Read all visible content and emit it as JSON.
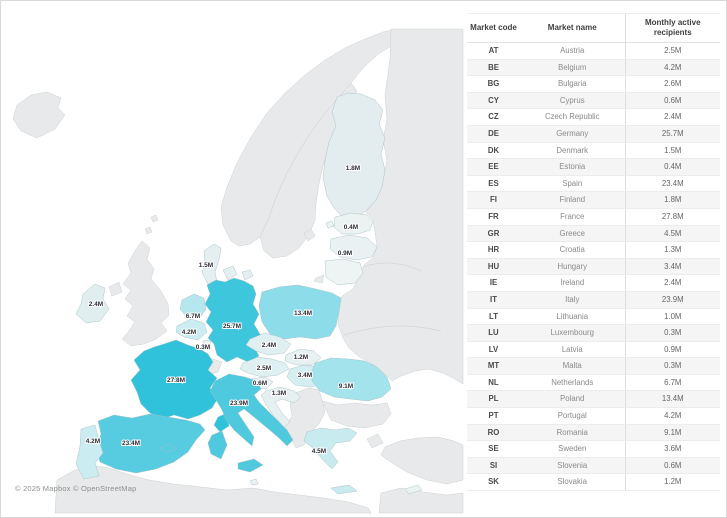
{
  "attribution": "© 2025 Mapbox © OpenStreetMap",
  "table": {
    "headers": [
      "Market code",
      "Market name",
      "Monthly active recipients"
    ],
    "rows": [
      {
        "code": "AT",
        "name": "Austria",
        "value": "2.5M"
      },
      {
        "code": "BE",
        "name": "Belgium",
        "value": "4.2M"
      },
      {
        "code": "BG",
        "name": "Bulgaria",
        "value": "2.6M"
      },
      {
        "code": "CY",
        "name": "Cyprus",
        "value": "0.6M"
      },
      {
        "code": "CZ",
        "name": "Czech Republic",
        "value": "2.4M"
      },
      {
        "code": "DE",
        "name": "Germany",
        "value": "25.7M"
      },
      {
        "code": "DK",
        "name": "Denmark",
        "value": "1.5M"
      },
      {
        "code": "EE",
        "name": "Estonia",
        "value": "0.4M"
      },
      {
        "code": "ES",
        "name": "Spain",
        "value": "23.4M"
      },
      {
        "code": "FI",
        "name": "Finland",
        "value": "1.8M"
      },
      {
        "code": "FR",
        "name": "France",
        "value": "27.8M"
      },
      {
        "code": "GR",
        "name": "Greece",
        "value": "4.5M"
      },
      {
        "code": "HR",
        "name": "Croatia",
        "value": "1.3M"
      },
      {
        "code": "HU",
        "name": "Hungary",
        "value": "3.4M"
      },
      {
        "code": "IE",
        "name": "Ireland",
        "value": "2.4M"
      },
      {
        "code": "IT",
        "name": "Italy",
        "value": "23.9M"
      },
      {
        "code": "LT",
        "name": "Lithuania",
        "value": "1.0M"
      },
      {
        "code": "LU",
        "name": "Luxembourg",
        "value": "0.3M"
      },
      {
        "code": "LV",
        "name": "Latvia",
        "value": "0.9M"
      },
      {
        "code": "MT",
        "name": "Malta",
        "value": "0.3M"
      },
      {
        "code": "NL",
        "name": "Netherlands",
        "value": "6.7M"
      },
      {
        "code": "PL",
        "name": "Poland",
        "value": "13.4M"
      },
      {
        "code": "PT",
        "name": "Portugal",
        "value": "4.2M"
      },
      {
        "code": "RO",
        "name": "Romania",
        "value": "9.1M"
      },
      {
        "code": "SE",
        "name": "Sweden",
        "value": "3.6M"
      },
      {
        "code": "SI",
        "name": "Slovenia",
        "value": "0.6M"
      },
      {
        "code": "SK",
        "name": "Slovakia",
        "value": "1.2M"
      }
    ]
  },
  "map": {
    "labels": {
      "FI": "1.8M",
      "EE": "0.4M",
      "LV": "0.9M",
      "DK": "1.5M",
      "IE": "2.4M",
      "NL": "6.7M",
      "BE": "4.2M",
      "LU": "0.3M",
      "DE": "25.7M",
      "PL": "13.4M",
      "CZ": "2.4M",
      "SK": "1.2M",
      "AT": "2.5M",
      "HU": "3.4M",
      "SI": "0.6M",
      "HR": "1.3M",
      "FR": "27.8M",
      "ES": "23.4M",
      "PT": "4.2M",
      "IT": "23.9M",
      "RO": "9.1M",
      "GR": "4.5M"
    },
    "colors": {
      "FR": "#2fc2da",
      "DE": "#3ec6dc",
      "IT": "#4fc9de",
      "ES": "#57cce0",
      "PL": "#8cdde9",
      "RO": "#a3e3ec",
      "NL": "#b6e7ee",
      "GR": "#c7ebef",
      "BE": "#cbecf0",
      "PT": "#cbecf0",
      "HU": "#d4eef1",
      "AT": "#dff0f2",
      "CZ": "#e0f0f2",
      "IE": "#e1eef0",
      "FI": "#e3ecee",
      "DK": "#e5eef0",
      "HR": "#e7f0f1",
      "SK": "#e8f1f2",
      "LV": "#eaf1f2",
      "SI": "#eaf1f2",
      "EE": "#ebf2f2",
      "LU": "#ecf2f3",
      "LT": "#eef3f4",
      "CY": "#ebf2f2",
      "MT": "#ecf2f3",
      "noneu": "#e8e9ea",
      "sea": "#ffffff"
    }
  },
  "chart_data": {
    "type": "heatmap",
    "title": "Monthly active recipients by EU market (choropleth)",
    "categories": [
      "AT",
      "BE",
      "BG",
      "CY",
      "CZ",
      "DE",
      "DK",
      "EE",
      "ES",
      "FI",
      "FR",
      "GR",
      "HR",
      "HU",
      "IE",
      "IT",
      "LT",
      "LU",
      "LV",
      "MT",
      "NL",
      "PL",
      "PT",
      "RO",
      "SE",
      "SI",
      "SK"
    ],
    "values": [
      2.5,
      4.2,
      2.6,
      0.6,
      2.4,
      25.7,
      1.5,
      0.4,
      23.4,
      1.8,
      27.8,
      4.5,
      1.3,
      3.4,
      2.4,
      23.9,
      1.0,
      0.3,
      0.9,
      0.3,
      6.7,
      13.4,
      4.2,
      9.1,
      3.6,
      0.6,
      1.2
    ],
    "unit": "M",
    "legend_position": "none"
  }
}
